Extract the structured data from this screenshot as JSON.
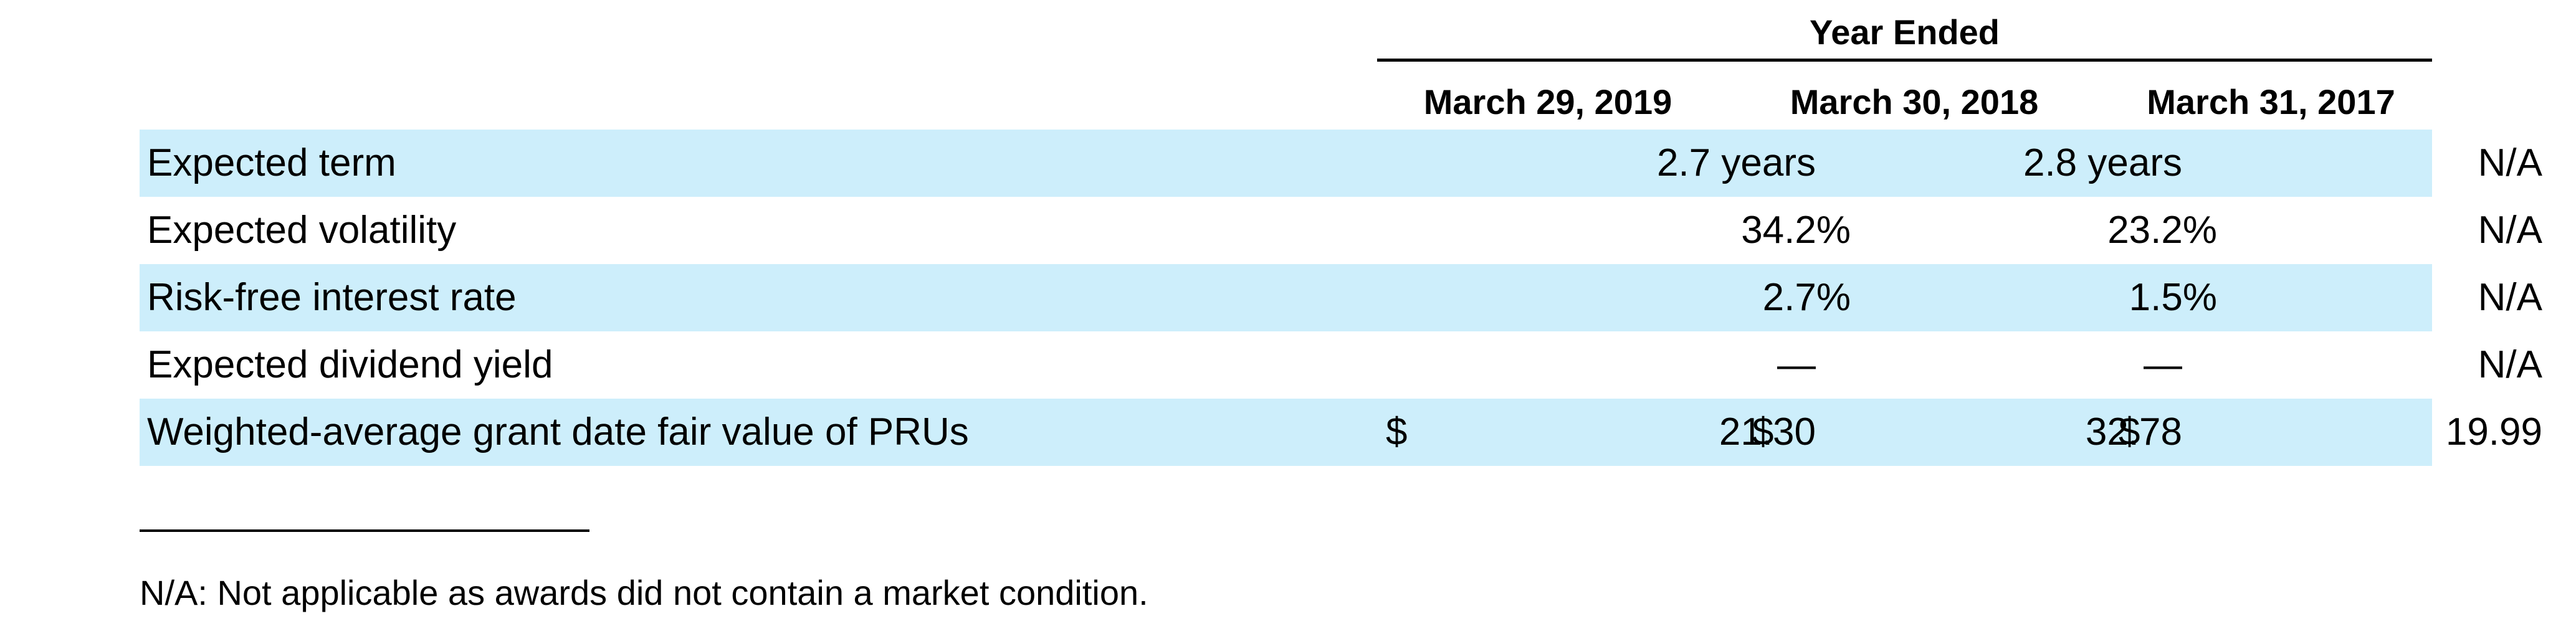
{
  "table": {
    "group_header": "Year Ended",
    "columns": [
      "March 29, 2019",
      "March 30, 2018",
      "March 31, 2017"
    ],
    "rows": [
      {
        "label": "Expected term",
        "shaded": true,
        "values": [
          {
            "currency": "",
            "value": "2.7 years"
          },
          {
            "currency": "",
            "value": "2.8 years"
          },
          {
            "currency": "",
            "value": "N/A"
          }
        ]
      },
      {
        "label": "Expected volatility",
        "shaded": false,
        "values": [
          {
            "currency": "",
            "value": "34.2%"
          },
          {
            "currency": "",
            "value": "23.2%"
          },
          {
            "currency": "",
            "value": "N/A"
          }
        ]
      },
      {
        "label": "Risk-free interest rate",
        "shaded": true,
        "values": [
          {
            "currency": "",
            "value": "2.7%"
          },
          {
            "currency": "",
            "value": "1.5%"
          },
          {
            "currency": "",
            "value": "N/A"
          }
        ]
      },
      {
        "label": "Expected dividend yield",
        "shaded": false,
        "values": [
          {
            "currency": "",
            "value": "—"
          },
          {
            "currency": "",
            "value": "—"
          },
          {
            "currency": "",
            "value": "N/A"
          }
        ]
      },
      {
        "label": "Weighted-average grant date fair value of PRUs",
        "shaded": true,
        "values": [
          {
            "currency": "$",
            "value": "21.30"
          },
          {
            "currency": "$",
            "value": "32.78"
          },
          {
            "currency": "$",
            "value": "19.99"
          }
        ]
      }
    ]
  },
  "footnote": "N/A: Not applicable as awards did not contain a market condition.",
  "colors": {
    "row_shading": "#cdeefb",
    "text": "#000000",
    "rule": "#000000"
  }
}
